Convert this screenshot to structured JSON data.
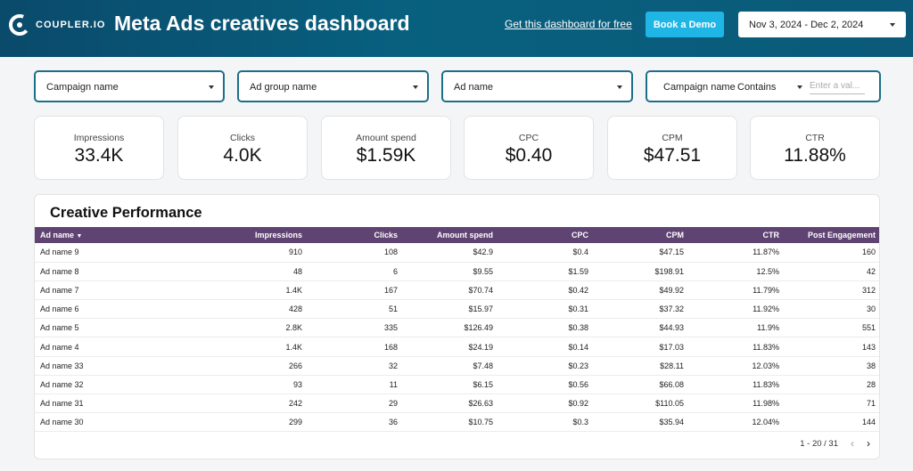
{
  "header": {
    "logo_text": "COUPLER.IO",
    "title": "Meta Ads creatives dashboard",
    "get_link": "Get this dashboard for free",
    "demo_button": "Book a Demo",
    "date_range": "Nov 3, 2024 - Dec 2, 2024"
  },
  "filters": {
    "campaign": "Campaign name",
    "ad_group": "Ad group name",
    "ad_name": "Ad name",
    "campaign_filter_label": "Campaign name",
    "campaign_filter_op": "Contains",
    "campaign_filter_placeholder": "Enter a val..."
  },
  "kpis": [
    {
      "label": "Impressions",
      "value": "33.4K"
    },
    {
      "label": "Clicks",
      "value": "4.0K"
    },
    {
      "label": "Amount spend",
      "value": "$1.59K"
    },
    {
      "label": "CPC",
      "value": "$0.40"
    },
    {
      "label": "CPM",
      "value": "$47.51"
    },
    {
      "label": "CTR",
      "value": "11.88%"
    }
  ],
  "table": {
    "title": "Creative Performance",
    "columns": [
      "Ad name",
      "Impressions",
      "Clicks",
      "Amount spend",
      "CPC",
      "CPM",
      "CTR",
      "Post Engagement"
    ],
    "rows": [
      [
        "Ad name 9",
        "910",
        "108",
        "$42.9",
        "$0.4",
        "$47.15",
        "11.87%",
        "160"
      ],
      [
        "Ad name 8",
        "48",
        "6",
        "$9.55",
        "$1.59",
        "$198.91",
        "12.5%",
        "42"
      ],
      [
        "Ad name 7",
        "1.4K",
        "167",
        "$70.74",
        "$0.42",
        "$49.92",
        "11.79%",
        "312"
      ],
      [
        "Ad name 6",
        "428",
        "51",
        "$15.97",
        "$0.31",
        "$37.32",
        "11.92%",
        "30"
      ],
      [
        "Ad name 5",
        "2.8K",
        "335",
        "$126.49",
        "$0.38",
        "$44.93",
        "11.9%",
        "551"
      ],
      [
        "Ad name 4",
        "1.4K",
        "168",
        "$24.19",
        "$0.14",
        "$17.03",
        "11.83%",
        "143"
      ],
      [
        "Ad name 33",
        "266",
        "32",
        "$7.48",
        "$0.23",
        "$28.11",
        "12.03%",
        "38"
      ],
      [
        "Ad name 32",
        "93",
        "11",
        "$6.15",
        "$0.56",
        "$66.08",
        "11.83%",
        "28"
      ],
      [
        "Ad name 31",
        "242",
        "29",
        "$26.63",
        "$0.92",
        "$110.05",
        "11.98%",
        "71"
      ],
      [
        "Ad name 30",
        "299",
        "36",
        "$10.75",
        "$0.3",
        "$35.94",
        "12.04%",
        "144"
      ]
    ],
    "pagination": "1 - 20 / 31"
  }
}
